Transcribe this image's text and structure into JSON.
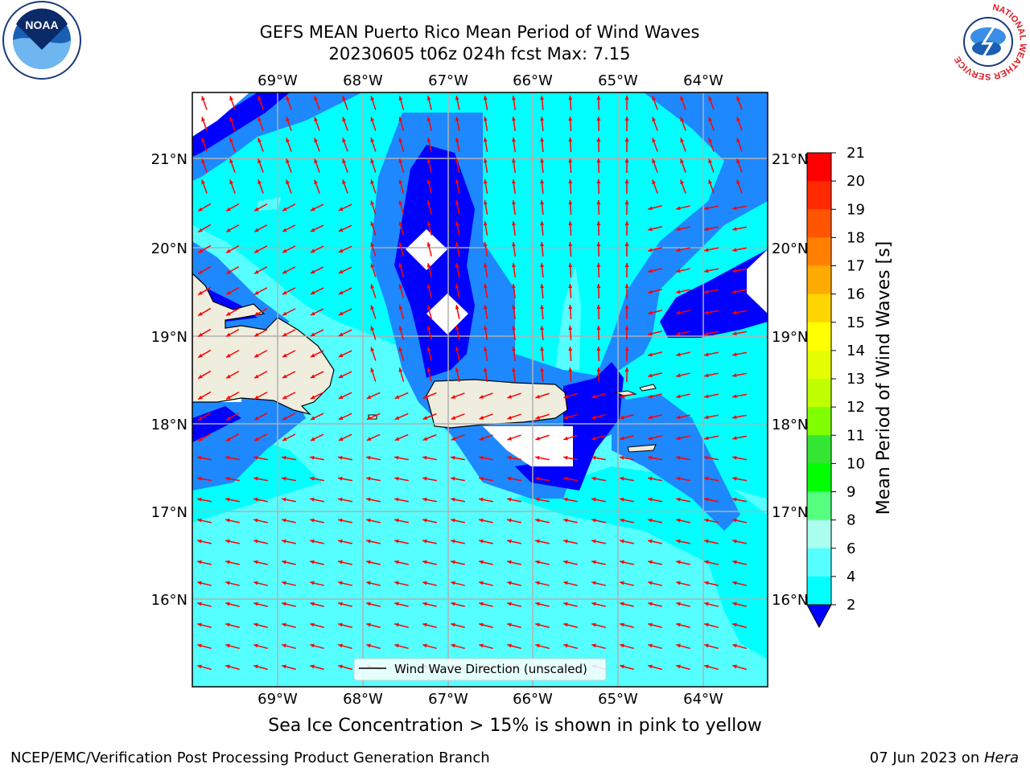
{
  "title": {
    "line1": "GEFS MEAN Puerto Rico Mean Period of Wind Waves",
    "line2": "20230605 t06z 024h fcst   Max: 7.15"
  },
  "map": {
    "lon_ticks": [
      "69°W",
      "68°W",
      "67°W",
      "66°W",
      "65°W",
      "64°W"
    ],
    "lat_ticks": [
      "21°N",
      "20°N",
      "19°N",
      "18°N",
      "17°N",
      "16°N"
    ],
    "legend_label": "Wind Wave Direction (unscaled)",
    "arrow_color": "#ff0000",
    "land_color": "#efedde"
  },
  "colorbar": {
    "label": "Mean Period of Wind Waves [s]",
    "ticks": [
      "21",
      "20",
      "19",
      "18",
      "17",
      "16",
      "15",
      "14",
      "13",
      "12",
      "11",
      "10",
      "9",
      "8",
      "6",
      "4",
      "2"
    ],
    "colors": [
      "#ff0000",
      "#ff2a00",
      "#ff5500",
      "#ff8000",
      "#ffaa00",
      "#ffd400",
      "#ffff00",
      "#e5ff00",
      "#bfff00",
      "#80ff00",
      "#33e633",
      "#00ff00",
      "#55ff80",
      "#aaffee",
      "#55ffff",
      "#00ffff",
      "#1e88ff",
      "#0000ff"
    ]
  },
  "caption": "Sea Ice Concentration > 15% is shown in pink to yellow",
  "footer": {
    "left": "NCEP/EMC/Verification Post Processing Product Generation Branch",
    "date": "07 Jun 2023 on ",
    "machine": "Hera"
  },
  "logos": {
    "noaa": "NOAA",
    "nws_ring": "NATIONAL WEATHER SERVICE"
  }
}
